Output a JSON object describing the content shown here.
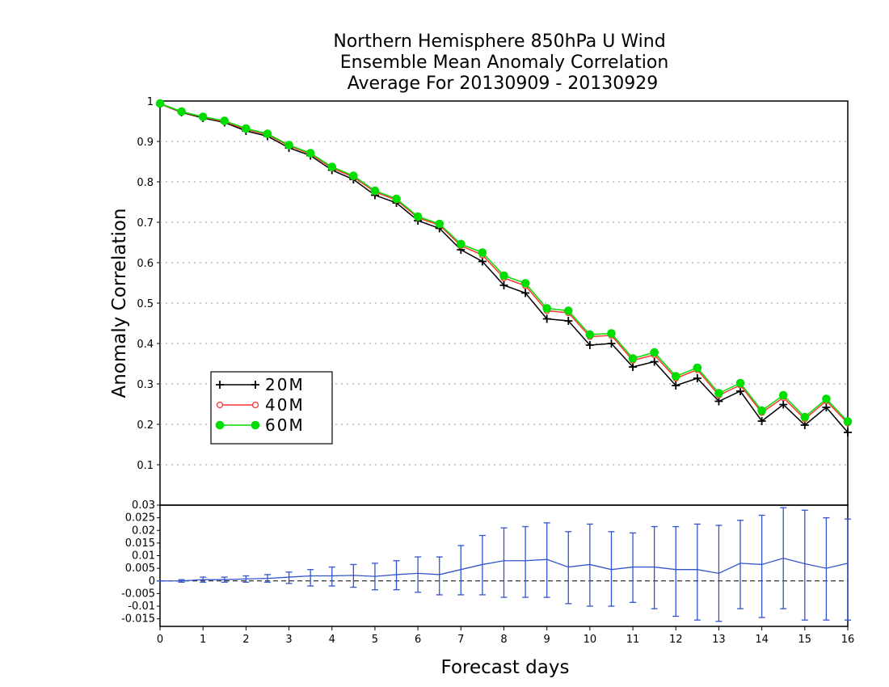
{
  "chart_data": [
    {
      "type": "line",
      "title_lines": [
        "Northern Hemisphere 850hPa U Wind",
        "Ensemble Mean Anomaly Correlation",
        "Average For 20130909 - 20130929"
      ],
      "xlabel": "Forecast days",
      "ylabel": "Anomaly Correlation",
      "xlim": [
        0,
        16
      ],
      "ylim": [
        0,
        1
      ],
      "x_ticks": [
        "0",
        "1",
        "2",
        "3",
        "4",
        "5",
        "6",
        "7",
        "8",
        "9",
        "10",
        "11",
        "12",
        "13",
        "14",
        "15",
        "16"
      ],
      "y_ticks": [
        "0.1",
        "0.2",
        "0.3",
        "0.4",
        "0.5",
        "0.6",
        "0.7",
        "0.8",
        "0.9",
        "1"
      ],
      "grid": "horizontal dotted",
      "legend_position": "left",
      "x": [
        0,
        0.5,
        1,
        1.5,
        2,
        2.5,
        3,
        3.5,
        4,
        4.5,
        5,
        5.5,
        6,
        6.5,
        7,
        7.5,
        8,
        8.5,
        9,
        9.5,
        10,
        10.5,
        11,
        11.5,
        12,
        12.5,
        13,
        13.5,
        14,
        14.5,
        15,
        15.5,
        16
      ],
      "series": [
        {
          "name": "20M",
          "color": "#000000",
          "marker": "plus",
          "values": [
            0.993,
            0.972,
            0.958,
            0.947,
            0.926,
            0.913,
            0.884,
            0.865,
            0.829,
            0.806,
            0.767,
            0.748,
            0.704,
            0.685,
            0.632,
            0.603,
            0.544,
            0.525,
            0.461,
            0.456,
            0.396,
            0.4,
            0.342,
            0.355,
            0.296,
            0.314,
            0.257,
            0.282,
            0.208,
            0.249,
            0.198,
            0.242,
            0.18
          ]
        },
        {
          "name": "40M",
          "color": "#ff3333",
          "marker": "open-circle",
          "values": [
            0.993,
            0.973,
            0.96,
            0.949,
            0.93,
            0.917,
            0.889,
            0.869,
            0.834,
            0.812,
            0.775,
            0.755,
            0.711,
            0.693,
            0.642,
            0.619,
            0.562,
            0.543,
            0.481,
            0.476,
            0.417,
            0.42,
            0.358,
            0.372,
            0.314,
            0.335,
            0.272,
            0.297,
            0.229,
            0.266,
            0.213,
            0.258,
            0.203
          ]
        },
        {
          "name": "60M",
          "color": "#00dd00",
          "marker": "filled-circle",
          "values": [
            0.994,
            0.974,
            0.961,
            0.951,
            0.932,
            0.919,
            0.891,
            0.871,
            0.837,
            0.815,
            0.778,
            0.758,
            0.714,
            0.696,
            0.646,
            0.625,
            0.568,
            0.549,
            0.487,
            0.481,
            0.422,
            0.425,
            0.363,
            0.378,
            0.319,
            0.34,
            0.277,
            0.302,
            0.234,
            0.272,
            0.218,
            0.263,
            0.207
          ]
        }
      ]
    },
    {
      "type": "line",
      "ylim": [
        -0.018,
        0.03
      ],
      "y_ticks": [
        "0.03",
        "0.025",
        "0.02",
        "0.015",
        "0.01",
        "0.005",
        "0",
        "-0.005",
        "-0.01",
        "-0.015"
      ],
      "reference_line": 0,
      "color": "#3355cc",
      "x": [
        0,
        0.5,
        1,
        1.5,
        2,
        2.5,
        3,
        3.5,
        4,
        4.5,
        5,
        5.5,
        6,
        6.5,
        7,
        7.5,
        8,
        8.5,
        9,
        9.5,
        10,
        10.5,
        11,
        11.5,
        12,
        12.5,
        13,
        13.5,
        14,
        14.5,
        15,
        15.5,
        16
      ],
      "series": [
        {
          "values": [
            0,
            0,
            0.0005,
            0.0005,
            0.0008,
            0.001,
            0.0015,
            0.002,
            0.002,
            0.0022,
            0.0018,
            0.0025,
            0.003,
            0.0025,
            0.0045,
            0.0065,
            0.008,
            0.008,
            0.0085,
            0.0055,
            0.0065,
            0.0045,
            0.0055,
            0.0055,
            0.0045,
            0.0045,
            0.003,
            0.007,
            0.0065,
            0.009,
            0.0068,
            0.005,
            0.007
          ],
          "error_low": [
            0,
            -0.0005,
            -0.0005,
            -0.0005,
            -0.0005,
            -0.0005,
            -0.001,
            -0.002,
            -0.002,
            -0.0025,
            -0.0035,
            -0.0035,
            -0.0045,
            -0.0055,
            -0.0055,
            -0.0055,
            -0.0065,
            -0.0065,
            -0.0065,
            -0.009,
            -0.01,
            -0.01,
            -0.0085,
            -0.011,
            -0.014,
            -0.0155,
            -0.016,
            -0.011,
            -0.0145,
            -0.011,
            -0.0155,
            -0.0155,
            -0.0155
          ],
          "error_high": [
            0,
            0.0005,
            0.0015,
            0.0015,
            0.002,
            0.0025,
            0.0035,
            0.0045,
            0.0055,
            0.0065,
            0.007,
            0.008,
            0.0095,
            0.0095,
            0.014,
            0.018,
            0.021,
            0.0215,
            0.023,
            0.0195,
            0.0225,
            0.0195,
            0.019,
            0.0215,
            0.0215,
            0.0225,
            0.022,
            0.024,
            0.026,
            0.029,
            0.028,
            0.025,
            0.0245
          ]
        }
      ]
    }
  ]
}
